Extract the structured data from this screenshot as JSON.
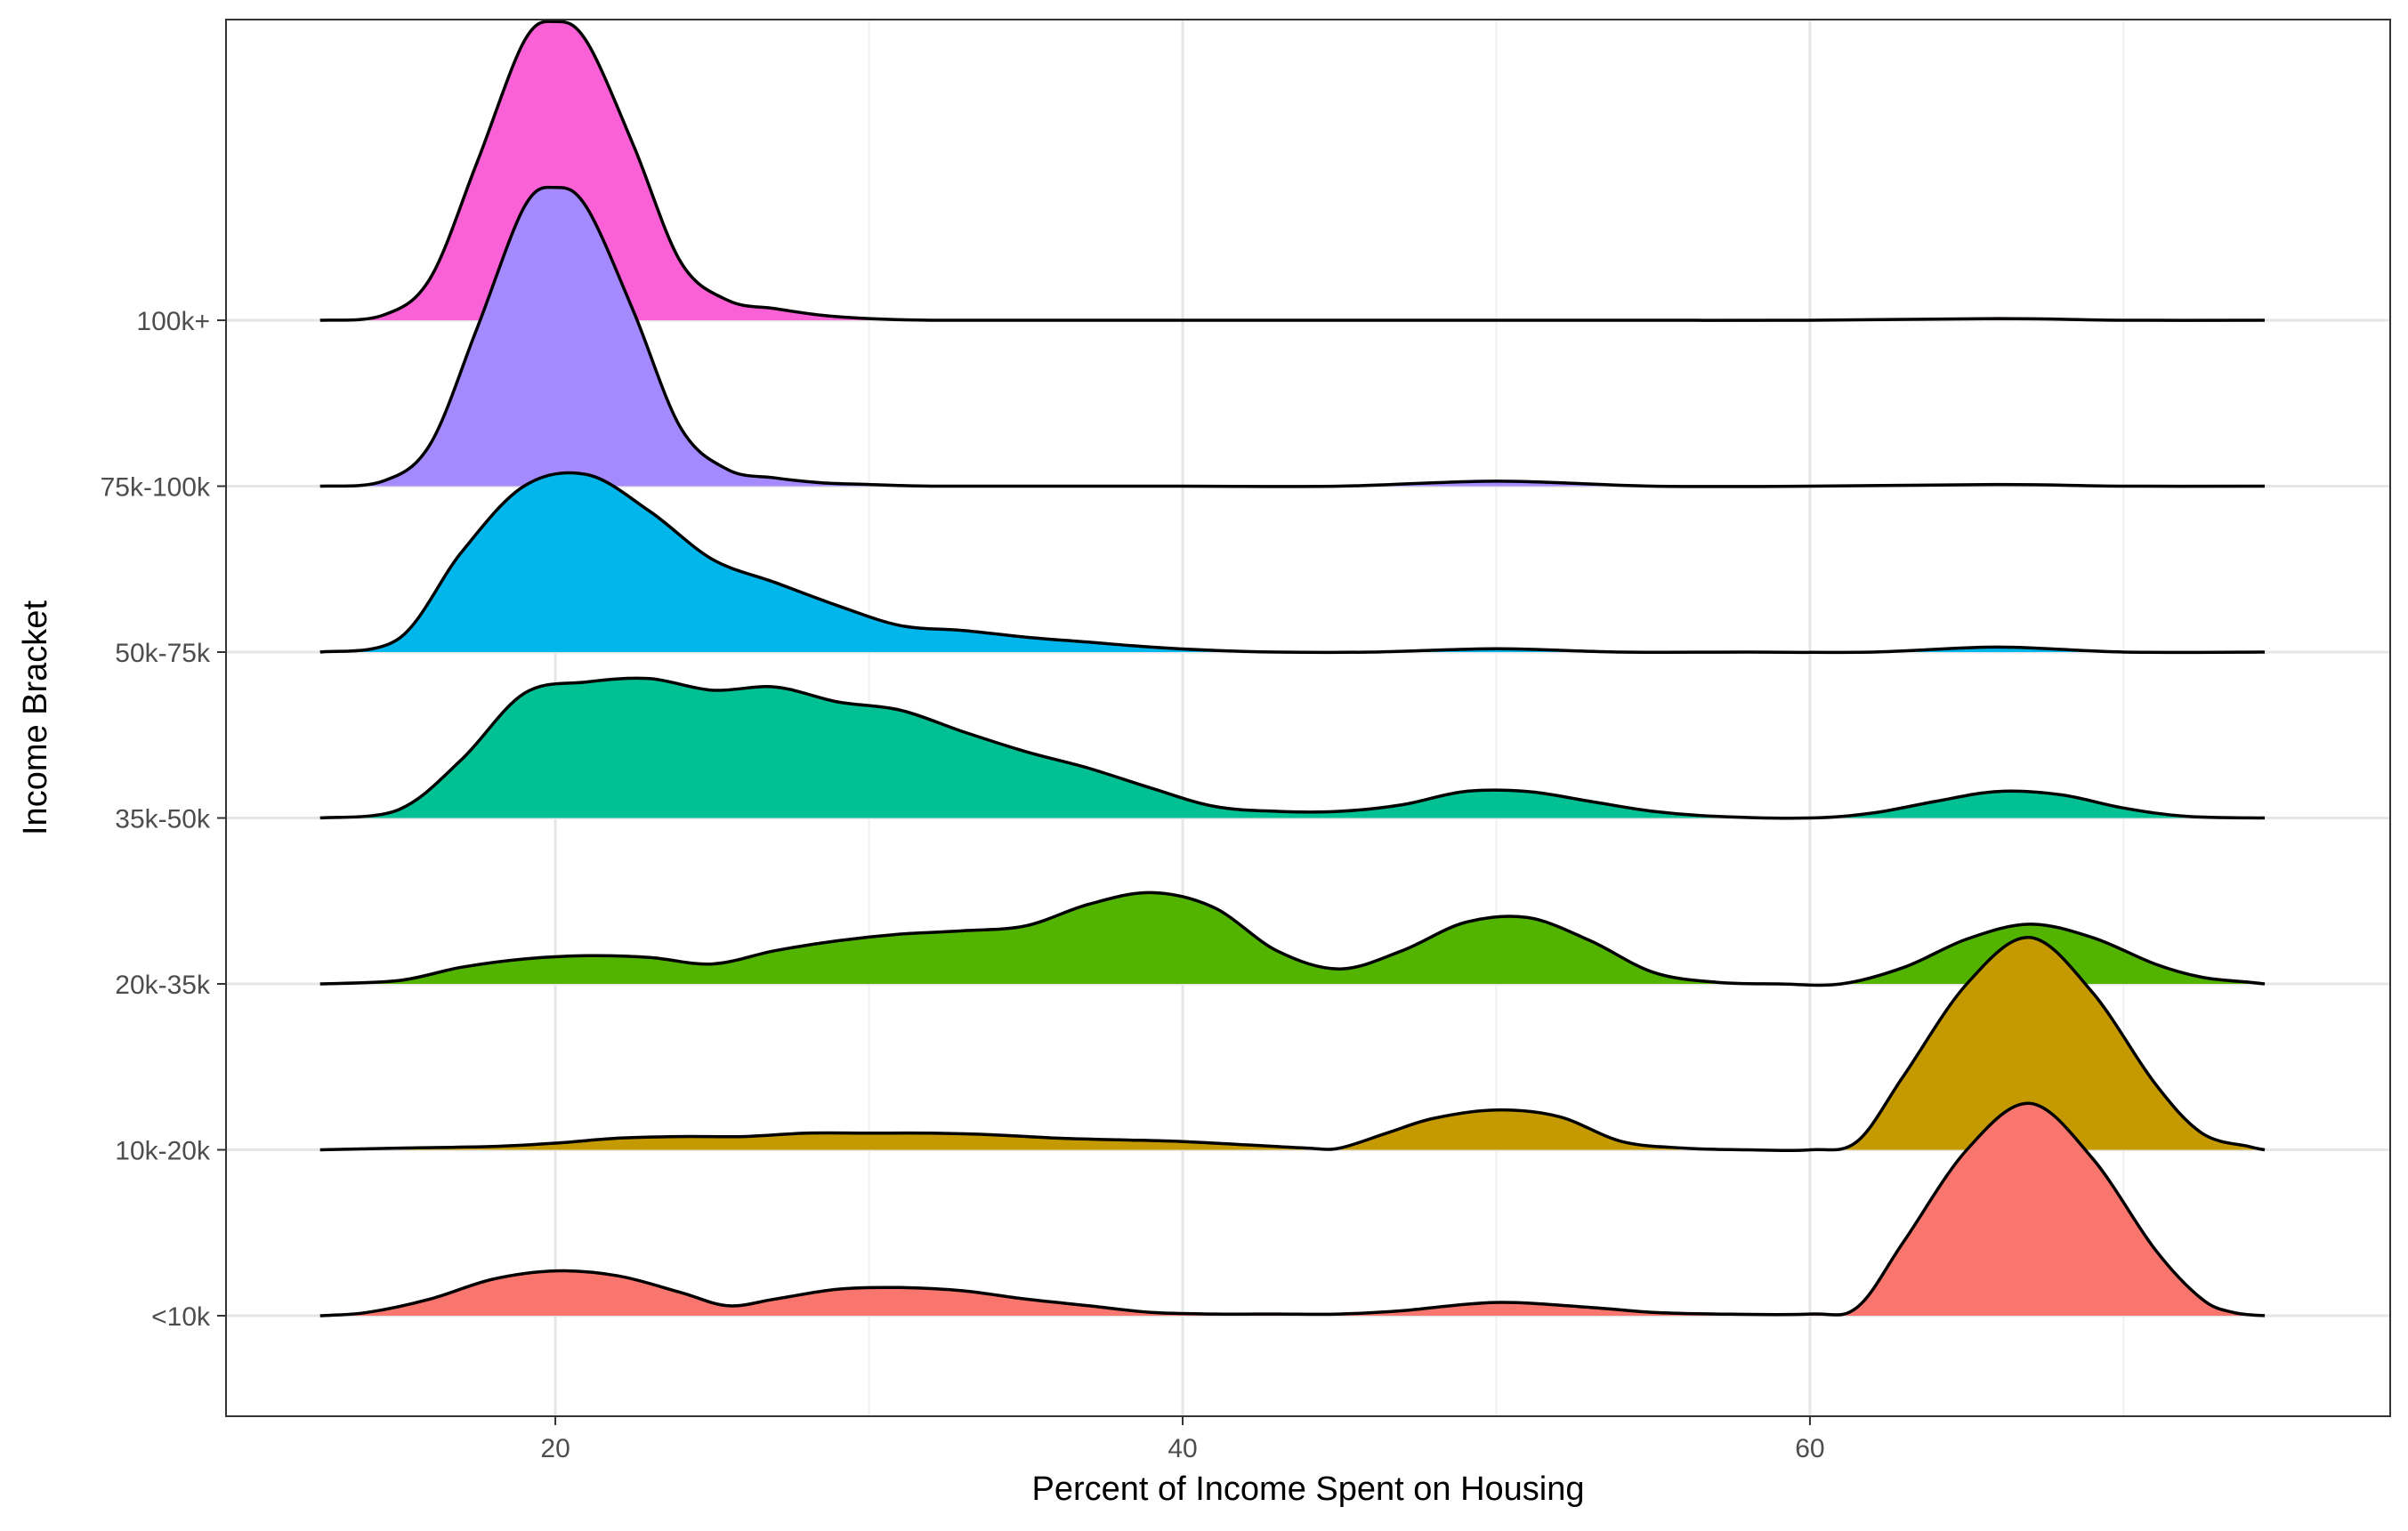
{
  "chart_data": {
    "type": "ridgeline",
    "title": "",
    "xlabel": "Percent of Income Spent on Housing",
    "ylabel": "Income Bracket",
    "xlim": [
      9.5,
      78.5
    ],
    "x_ticks": [
      20,
      40,
      60
    ],
    "grid": true,
    "legend": "none",
    "categories": [
      "<10k",
      "10k-20k",
      "20k-35k",
      "35k-50k",
      "50k-75k",
      "75k-100k",
      "100k+"
    ],
    "series": [
      {
        "name": "<10k",
        "color": "#F8766D",
        "x": [
          12.5,
          14,
          16,
          18,
          20,
          22,
          24,
          25.5,
          27,
          29,
          31,
          33,
          35,
          37,
          39,
          41,
          43,
          45,
          47,
          50,
          53,
          55,
          57,
          60,
          61.5,
          63,
          65,
          67,
          69,
          71,
          72.5,
          73.5,
          74.5
        ],
        "density": [
          0.0,
          0.02,
          0.1,
          0.22,
          0.27,
          0.24,
          0.14,
          0.06,
          0.1,
          0.16,
          0.17,
          0.15,
          0.1,
          0.06,
          0.02,
          0.01,
          0.01,
          0.01,
          0.03,
          0.08,
          0.05,
          0.02,
          0.01,
          0.01,
          0.05,
          0.45,
          1.0,
          1.28,
          0.95,
          0.4,
          0.1,
          0.02,
          0.0
        ]
      },
      {
        "name": "10k-20k",
        "color": "#C49A00",
        "x": [
          12.5,
          15,
          18,
          20,
          22,
          24,
          26,
          28,
          30,
          32,
          34,
          36,
          38,
          40,
          42,
          44,
          45,
          46.5,
          48,
          50,
          52,
          54,
          56,
          58,
          60,
          61.5,
          63,
          65,
          67,
          69,
          71,
          72.5,
          74,
          74.5
        ],
        "density": [
          0.0,
          0.01,
          0.02,
          0.04,
          0.07,
          0.08,
          0.08,
          0.1,
          0.1,
          0.1,
          0.09,
          0.07,
          0.06,
          0.05,
          0.03,
          0.01,
          0.01,
          0.1,
          0.19,
          0.24,
          0.2,
          0.05,
          0.01,
          0.0,
          0.0,
          0.05,
          0.45,
          1.0,
          1.28,
          0.95,
          0.4,
          0.1,
          0.02,
          0.0
        ]
      },
      {
        "name": "20k-35k",
        "color": "#53B400",
        "x": [
          12.5,
          15,
          17,
          19,
          21,
          23,
          25,
          27,
          29,
          31,
          33,
          35,
          37,
          39,
          41,
          43,
          45,
          47,
          49,
          51,
          53,
          55,
          57,
          59,
          61,
          63,
          65,
          67,
          69,
          71,
          72.5,
          74,
          74.5
        ],
        "density": [
          0.0,
          0.02,
          0.1,
          0.15,
          0.17,
          0.16,
          0.12,
          0.2,
          0.26,
          0.3,
          0.32,
          0.35,
          0.48,
          0.55,
          0.46,
          0.2,
          0.09,
          0.2,
          0.37,
          0.4,
          0.26,
          0.07,
          0.01,
          0.0,
          0.0,
          0.1,
          0.27,
          0.36,
          0.28,
          0.12,
          0.04,
          0.01,
          0.0
        ]
      },
      {
        "name": "35k-50k",
        "color": "#00C094",
        "x": [
          12.5,
          15,
          17,
          19,
          21,
          23,
          25,
          27,
          29,
          31,
          33,
          35,
          37,
          39,
          41,
          43,
          45,
          47,
          49,
          51,
          53,
          55,
          57,
          60,
          62,
          64,
          66,
          68,
          70,
          72,
          74.5
        ],
        "density": [
          0.0,
          0.05,
          0.35,
          0.75,
          0.82,
          0.84,
          0.77,
          0.79,
          0.7,
          0.65,
          0.52,
          0.4,
          0.3,
          0.18,
          0.07,
          0.04,
          0.04,
          0.08,
          0.16,
          0.16,
          0.1,
          0.04,
          0.01,
          0.0,
          0.03,
          0.1,
          0.16,
          0.14,
          0.06,
          0.01,
          0.0
        ]
      },
      {
        "name": "50k-75k",
        "color": "#00B6EB",
        "x": [
          12.5,
          15,
          17,
          19,
          21,
          23,
          25,
          27,
          29,
          31,
          33,
          35,
          37,
          39,
          41,
          43,
          46,
          50,
          54,
          58,
          62,
          66,
          70,
          74.5
        ],
        "density": [
          0.0,
          0.08,
          0.6,
          1.0,
          1.07,
          0.85,
          0.56,
          0.42,
          0.28,
          0.16,
          0.13,
          0.09,
          0.06,
          0.03,
          0.01,
          0.0,
          0.0,
          0.02,
          0.0,
          0.0,
          0.0,
          0.03,
          0.0,
          0.0
        ]
      },
      {
        "name": "75k-100k",
        "color": "#A58AFF",
        "x": [
          12.5,
          14.5,
          16,
          17.5,
          19,
          20,
          21,
          22.5,
          24,
          25.5,
          27,
          28.5,
          30,
          32,
          35,
          40,
          45,
          50,
          55,
          60,
          66,
          70,
          74.5
        ],
        "density": [
          0.0,
          0.03,
          0.25,
          0.95,
          1.68,
          1.8,
          1.68,
          1.05,
          0.35,
          0.1,
          0.05,
          0.02,
          0.01,
          0.0,
          0.0,
          0.0,
          0.0,
          0.03,
          0.0,
          0.0,
          0.01,
          0.0,
          0.0
        ]
      },
      {
        "name": "100k+",
        "color": "#FB61D7",
        "x": [
          12.5,
          14.5,
          16,
          17.5,
          19,
          20,
          21,
          22.5,
          24,
          25.5,
          27,
          28.5,
          30,
          32,
          35,
          40,
          45,
          50,
          55,
          60,
          66,
          70,
          74.5
        ],
        "density": [
          0.0,
          0.03,
          0.25,
          0.95,
          1.68,
          1.8,
          1.68,
          1.05,
          0.35,
          0.12,
          0.07,
          0.03,
          0.01,
          0.0,
          0.0,
          0.0,
          0.0,
          0.0,
          0.0,
          0.0,
          0.01,
          0.0,
          0.0
        ]
      }
    ]
  }
}
